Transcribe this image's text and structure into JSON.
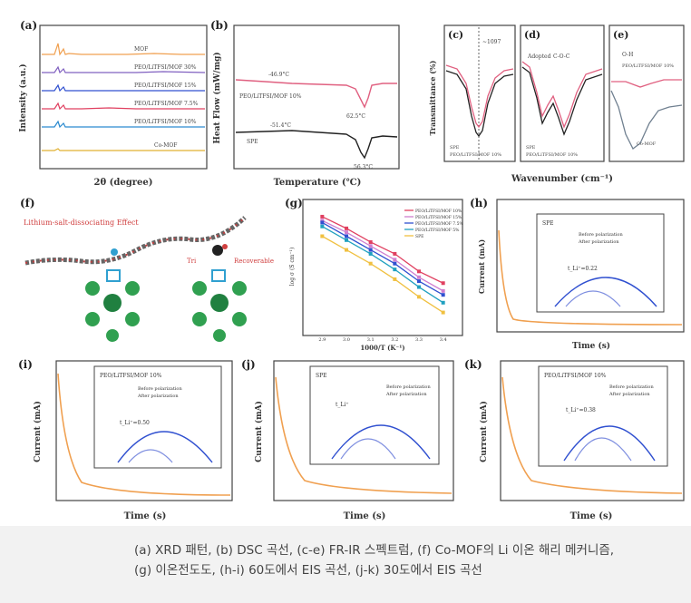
{
  "caption": {
    "line1": "(a) XRD 패턴, (b) DSC 곡선, (c-e) FR-IR 스펙트럼, (f) Co-MOF의 Li 이온 해리 메커니즘,",
    "line2": "(g) 이온전도도, (h-i) 60도에서 EIS 곡선, (j-k) 30도에서 EIS 곡선"
  },
  "colors": {
    "orange": "#f0a050",
    "red": "#e04060",
    "blue": "#3050d0",
    "black": "#222222",
    "pink": "#e06080"
  },
  "chart_data": [
    {
      "id": "a",
      "type": "line",
      "label": "(a)",
      "xlabel": "2θ (degree)",
      "ylabel": "Intensity (a.u.)",
      "xlim": [
        5,
        80
      ],
      "series": [
        {
          "name": "MOF"
        },
        {
          "name": "PEO/LiTFSI/MOF 30%"
        },
        {
          "name": "PEO/LiTFSI/MOF 15%"
        },
        {
          "name": "PEO/LiTFSI/MOF 7.5%"
        },
        {
          "name": "PEO/LiTFSI/MOF 10%"
        },
        {
          "name": "Co-MOF"
        }
      ]
    },
    {
      "id": "b",
      "type": "line",
      "label": "(b)",
      "xlabel": "Temperature (℃)",
      "ylabel": "Heat Flow (mW/mg)",
      "xlim": [
        -80,
        100
      ],
      "series": [
        {
          "name": "PEO/LiTFSI/MOF 10%"
        },
        {
          "name": "SPE"
        }
      ],
      "annotations": [
        "-46.9°C",
        "62.5°C",
        "-51.4°C",
        "56.3°C"
      ]
    },
    {
      "id": "c",
      "type": "line",
      "label": "(c)",
      "xlabel": "",
      "ylabel": "Transmittance (%)",
      "series": [
        {
          "name": "SPE"
        },
        {
          "name": "PEO/LiTFSI/MOF 10%"
        }
      ],
      "annotations": [
        "~1097"
      ]
    },
    {
      "id": "d",
      "type": "line",
      "label": "(d)",
      "xlabel": "",
      "ylabel": "",
      "series": [
        {
          "name": "SPE"
        },
        {
          "name": "PEO/LiTFSI/MOF 10%"
        }
      ],
      "annotations": [
        "Adopted",
        "C-O-C"
      ]
    },
    {
      "id": "e",
      "type": "line",
      "label": "(e)",
      "xlabel": "",
      "ylabel": "",
      "series": [
        {
          "name": "PEO/LiTFSI/MOF 10%"
        },
        {
          "name": "Co-MOF"
        }
      ],
      "annotations": [
        "O-H"
      ]
    },
    {
      "id": "shared_x",
      "xlabel": "Wavenumber (cm⁻¹)"
    },
    {
      "id": "f",
      "type": "diagram",
      "label": "(f)",
      "annotations": [
        "Lithium-salt-dissociating Effect",
        "Tri",
        "Recoverable"
      ]
    },
    {
      "id": "g",
      "type": "line",
      "label": "(g)",
      "xlabel": "1000/T (K⁻¹)",
      "ylabel": "log σ (S cm⁻¹)",
      "x": [
        2.9,
        3.0,
        3.1,
        3.2,
        3.3,
        3.4
      ],
      "series": [
        {
          "name": "PEO/LiTFSI/MOF 10%",
          "values": [
            -3.1,
            -3.4,
            -3.75,
            -4.05,
            -4.5,
            -4.8
          ]
        },
        {
          "name": "PEO/LiTFSI/MOF 15%",
          "values": [
            -3.2,
            -3.5,
            -3.85,
            -4.2,
            -4.65,
            -5.0
          ]
        },
        {
          "name": "PEO/LiTFSI/MOF 7.5%",
          "values": [
            -3.25,
            -3.6,
            -3.95,
            -4.3,
            -4.75,
            -5.1
          ]
        },
        {
          "name": "PEO/LiTFSI/MOF 5%",
          "values": [
            -3.35,
            -3.7,
            -4.05,
            -4.45,
            -4.9,
            -5.3
          ]
        },
        {
          "name": "SPE",
          "values": [
            -3.6,
            -3.95,
            -4.3,
            -4.7,
            -5.15,
            -5.55
          ]
        }
      ],
      "ylim": [
        -6,
        -2.8
      ]
    },
    {
      "id": "h",
      "type": "line",
      "label": "(h)",
      "xlabel": "Time (s)",
      "ylabel": "Current (mA)",
      "inset_title": "SPE",
      "inset_series": [
        "Before polarization",
        "After polarization"
      ],
      "inset_note": "t_Li⁺=0.22"
    },
    {
      "id": "i",
      "type": "line",
      "label": "(i)",
      "xlabel": "Time (s)",
      "ylabel": "Current (mA)",
      "inset_title": "PEO/LiTFSI/MOF 10%",
      "inset_series": [
        "Before polarization",
        "After polarization"
      ],
      "inset_note": "t_Li⁺=0.50"
    },
    {
      "id": "j",
      "type": "line",
      "label": "(j)",
      "xlabel": "Time (s)",
      "ylabel": "Current (mA)",
      "inset_title": "SPE",
      "inset_series": [
        "Before polarization",
        "After polarization"
      ],
      "inset_note": "t_Li⁺"
    },
    {
      "id": "k",
      "type": "line",
      "label": "(k)",
      "xlabel": "Time (s)",
      "ylabel": "Current (mA)",
      "inset_title": "PEO/LiTFSI/MOF 10%",
      "inset_series": [
        "Before polarization",
        "After polarization"
      ],
      "inset_note": "t_Li⁺=0.38"
    }
  ]
}
